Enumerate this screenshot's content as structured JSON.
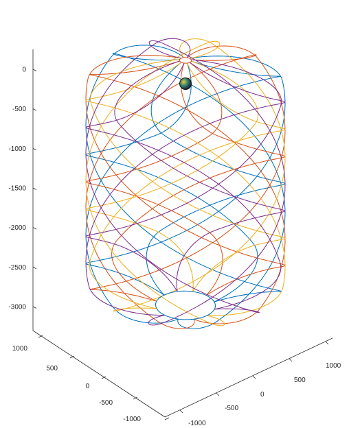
{
  "chart_data": {
    "type": "line",
    "projection": "3d",
    "title": "",
    "xlabel": "",
    "ylabel": "",
    "zlabel": "",
    "grid": false,
    "legend": "none",
    "colors": [
      "#0072BD",
      "#D95319",
      "#EDB120",
      "#7E2F8E"
    ],
    "xlim": [
      -1100,
      1100
    ],
    "ylim": [
      -1100,
      1100
    ],
    "zlim": [
      -3300,
      200
    ],
    "z_ticks": [
      0,
      -500,
      -1000,
      -1500,
      -2000,
      -2500,
      -3000
    ],
    "z_tick_labels": [
      "0",
      "-500",
      "-1000",
      "-1500",
      "-2000",
      "-2500",
      "-3000"
    ],
    "y_ticks": [
      1000,
      500,
      0,
      -500,
      -1000
    ],
    "y_tick_labels": [
      "1000",
      "500",
      "0",
      "-500",
      "-1000"
    ],
    "x_ticks": [
      -1000,
      -500,
      0,
      500,
      1000
    ],
    "x_tick_labels": [
      "-1000",
      "-500",
      "0",
      "500",
      "1000"
    ],
    "series_description": "Four helical strand paths wound around a vertical cylinder of radius ~1000, running from z = 0 at the top to z ≈ -3300 at the bottom, converging through a narrow ring at the top and a wider ring at the bottom.",
    "marker": {
      "x": 0,
      "y": 0,
      "z": -180,
      "label": ""
    },
    "series": [
      {
        "color_index": 0,
        "phase_deg": 0,
        "turns": 1.5
      },
      {
        "color_index": 1,
        "phase_deg": 90,
        "turns": 1.5
      },
      {
        "color_index": 2,
        "phase_deg": 180,
        "turns": 1.5
      },
      {
        "color_index": 3,
        "phase_deg": 270,
        "turns": 1.5
      }
    ],
    "top_ring_radius": 60,
    "bottom_ring_radius": 300,
    "cylinder_radius": 1000
  }
}
